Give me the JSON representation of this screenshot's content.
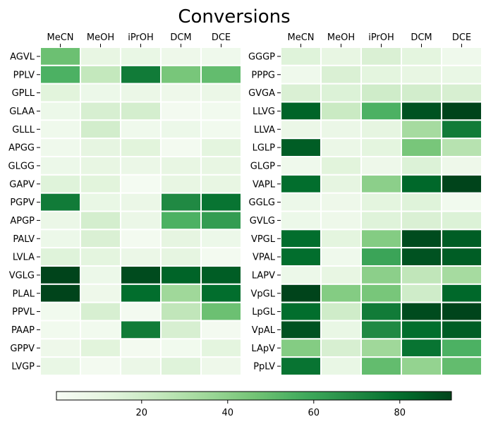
{
  "chart_data": {
    "type": "heatmap",
    "title": "Conversions",
    "colormap": "Greens",
    "color_range": [
      0.2,
      92
    ],
    "colorbar": {
      "position": "bottom",
      "orientation": "horizontal",
      "ticks": [
        20,
        40,
        60,
        80
      ]
    },
    "grid": false,
    "panels": [
      {
        "columns": [
          "MeCN",
          "MeOH",
          "iPrOH",
          "DCM",
          "DCE"
        ],
        "rows": [
          "AGVL",
          "PPLV",
          "GPLL",
          "GLAA",
          "GLLL",
          "APGG",
          "GLGG",
          "GAPV",
          "PGPV",
          "APGP",
          "PALV",
          "LVLA",
          "VGLG",
          "PLAL",
          "PPVL",
          "PAAP",
          "GPPV",
          "LVGP"
        ],
        "values": [
          [
            48,
            10,
            9,
            6,
            5
          ],
          [
            55,
            24,
            75,
            45,
            50
          ],
          [
            13,
            7,
            8,
            6,
            8
          ],
          [
            7,
            17,
            18,
            3,
            4
          ],
          [
            5,
            19,
            5,
            7,
            4
          ],
          [
            5,
            11,
            13,
            3,
            12
          ],
          [
            7,
            10,
            8,
            10,
            10
          ],
          [
            14,
            13,
            2,
            10,
            10
          ],
          [
            75,
            9,
            8,
            70,
            78
          ],
          [
            8,
            18,
            8,
            55,
            63
          ],
          [
            7,
            16,
            3,
            11,
            7
          ],
          [
            14,
            12,
            8,
            11,
            3
          ],
          [
            92,
            7,
            90,
            83,
            85
          ],
          [
            92,
            6,
            80,
            35,
            80
          ],
          [
            4,
            17,
            3,
            25,
            48
          ],
          [
            4,
            4,
            75,
            17,
            3
          ],
          [
            6,
            13,
            3,
            4,
            12
          ],
          [
            9,
            3,
            8,
            14,
            6
          ]
        ]
      },
      {
        "columns": [
          "MeCN",
          "MeOH",
          "iPrOH",
          "DCM",
          "DCE"
        ],
        "rows": [
          "GGGP",
          "PPPG",
          "GVGA",
          "LLVG",
          "LLVA",
          "LGLP",
          "GLGP",
          "VAPL",
          "GGLG",
          "GVLG",
          "VPGL",
          "VPAL",
          "LAPV",
          "VpGL",
          "LpGL",
          "VpAL",
          "LApV",
          "PpLV"
        ],
        "values": [
          [
            14,
            10,
            16,
            12,
            5
          ],
          [
            5,
            16,
            12,
            10,
            9
          ],
          [
            16,
            15,
            20,
            19,
            17
          ],
          [
            83,
            22,
            55,
            88,
            92
          ],
          [
            8,
            8,
            11,
            33,
            75
          ],
          [
            85,
            8,
            12,
            45,
            28
          ],
          [
            5,
            13,
            6,
            15,
            6
          ],
          [
            80,
            11,
            40,
            82,
            92
          ],
          [
            7,
            6,
            12,
            14,
            4
          ],
          [
            7,
            6,
            14,
            16,
            15
          ],
          [
            80,
            12,
            42,
            90,
            85
          ],
          [
            80,
            5,
            60,
            88,
            85
          ],
          [
            7,
            10,
            40,
            25,
            33
          ],
          [
            92,
            42,
            45,
            20,
            82
          ],
          [
            80,
            20,
            75,
            90,
            92
          ],
          [
            88,
            9,
            70,
            80,
            85
          ],
          [
            42,
            17,
            35,
            78,
            55
          ],
          [
            78,
            9,
            50,
            38,
            50
          ]
        ]
      }
    ]
  }
}
